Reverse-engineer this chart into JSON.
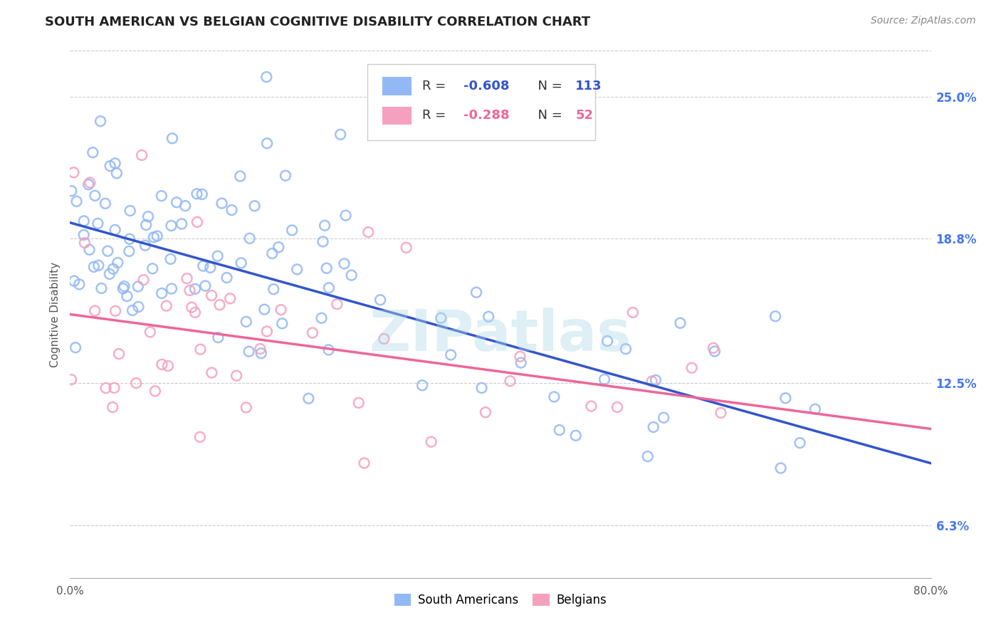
{
  "title": "SOUTH AMERICAN VS BELGIAN COGNITIVE DISABILITY CORRELATION CHART",
  "source": "Source: ZipAtlas.com",
  "ylabel": "Cognitive Disability",
  "ytick_labels": [
    "6.3%",
    "12.5%",
    "18.8%",
    "25.0%"
  ],
  "ytick_values": [
    0.063,
    0.125,
    0.188,
    0.25
  ],
  "xlim": [
    0.0,
    0.8
  ],
  "ylim": [
    0.04,
    0.27
  ],
  "legend_label_south_americans": "South Americans",
  "legend_label_belgians": "Belgians",
  "watermark": "ZIPatlas",
  "blue_scatter_color": "#92b8f5",
  "pink_scatter_color": "#f5a0be",
  "blue_line_color": "#3355cc",
  "pink_line_color": "#ee6699",
  "blue_R": -0.608,
  "blue_N": 113,
  "pink_R": -0.288,
  "pink_N": 52,
  "title_fontsize": 13,
  "source_fontsize": 10,
  "axis_label_fontsize": 11,
  "legend_fontsize": 12,
  "blue_r_color": "#3355cc",
  "pink_r_color": "#ee6699"
}
